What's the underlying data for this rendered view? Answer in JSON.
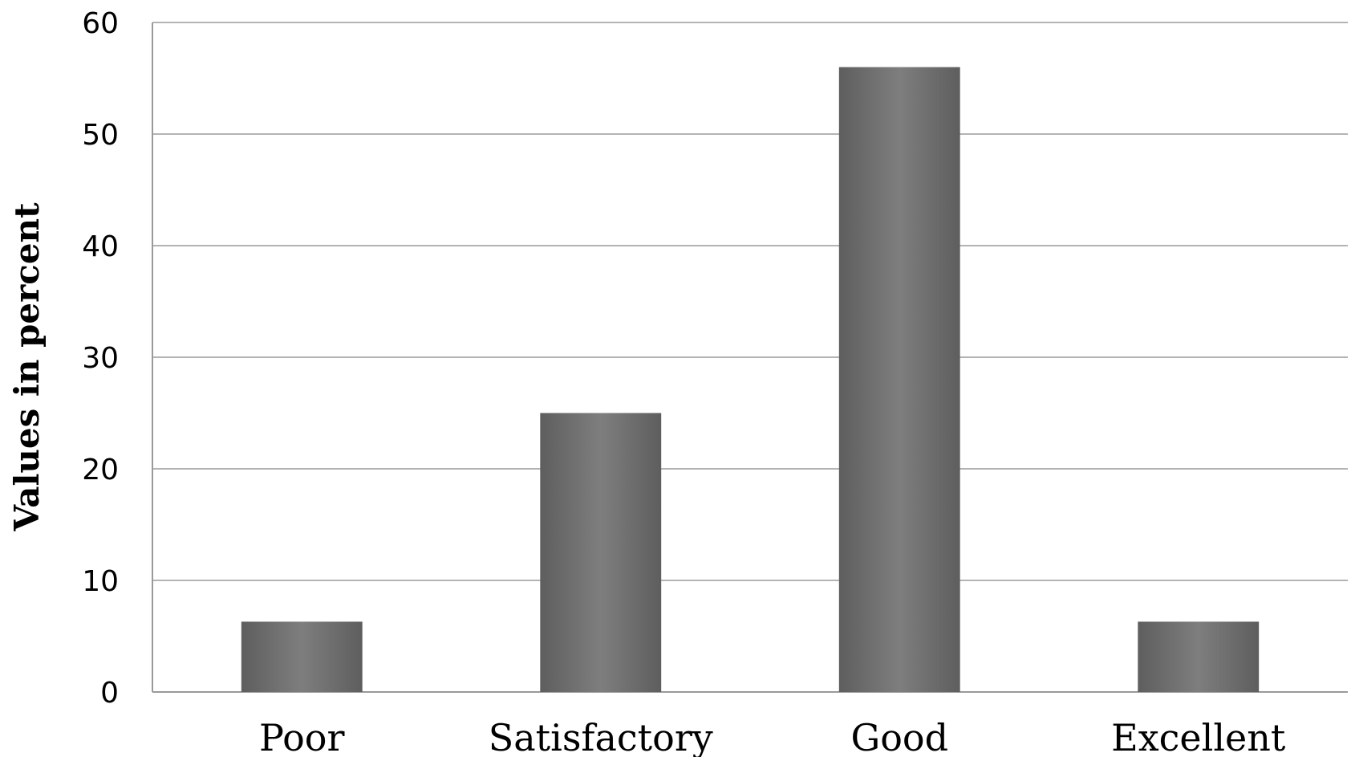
{
  "chart_data": {
    "type": "bar",
    "categories": [
      "Poor",
      "Satisfactory",
      "Good",
      "Excellent"
    ],
    "values": [
      6.3,
      25.0,
      56.0,
      6.3
    ],
    "title": "",
    "xlabel": "",
    "ylabel": "Values in percent",
    "ylim": [
      0,
      60
    ],
    "yticks": [
      "0",
      "10",
      "20",
      "30",
      "40",
      "50",
      "60"
    ],
    "grid": true,
    "legend": "none",
    "bar_color": "#707070"
  }
}
